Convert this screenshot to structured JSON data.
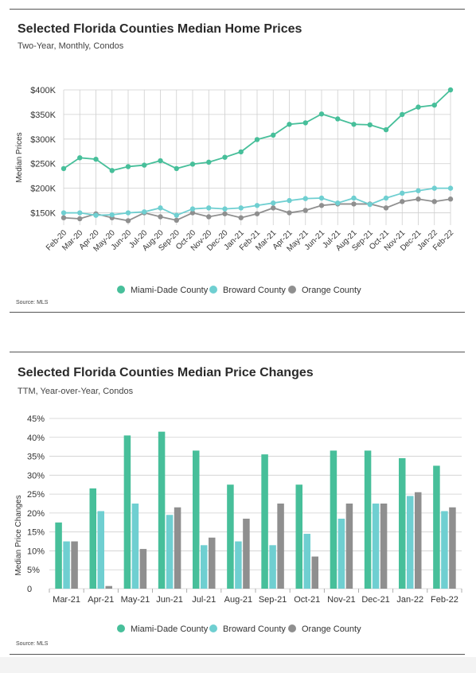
{
  "colors": {
    "miami": "#47bf9a",
    "broward": "#6fcfd1",
    "orange": "#8f8f8f",
    "grid": "#cfcfcf"
  },
  "chart1": {
    "title": "Selected Florida Counties Median Home Prices",
    "subtitle": "Two-Year, Monthly, Condos",
    "source": "Source: MLS"
  },
  "chart2": {
    "title": "Selected Florida Counties Median Price Changes",
    "subtitle": "TTM, Year-over-Year, Condos",
    "source": "Source: MLS"
  },
  "chart_data": [
    {
      "type": "line",
      "title": "Selected Florida Counties Median Home Prices",
      "subtitle": "Two-Year, Monthly, Condos",
      "xlabel": "",
      "ylabel": "Median Prices",
      "ylim": [
        125000,
        400000
      ],
      "yticks": [
        150000,
        200000,
        250000,
        300000,
        350000,
        400000
      ],
      "ytick_labels": [
        "$150K",
        "$200K",
        "$250K",
        "$300K",
        "$350K",
        "$400K"
      ],
      "grid": true,
      "legend_position": "bottom",
      "categories": [
        "Feb-20",
        "Mar-20",
        "Apr-20",
        "May-20",
        "Jun-20",
        "Jul-20",
        "Aug-20",
        "Sep-20",
        "Oct-20",
        "Nov-20",
        "Dec-20",
        "Jan-21",
        "Feb-21",
        "Mar-21",
        "Apr-21",
        "May-21",
        "Jun-21",
        "Jul-21",
        "Aug-21",
        "Sep-21",
        "Oct-21",
        "Nov-21",
        "Dec-21",
        "Jan-22",
        "Feb-22"
      ],
      "series": [
        {
          "name": "Miami-Dade County",
          "color": "#47bf9a",
          "values": [
            240000,
            262000,
            259000,
            236000,
            244000,
            247000,
            256000,
            240000,
            249000,
            253000,
            263000,
            274000,
            299000,
            308000,
            330000,
            333000,
            351000,
            341000,
            330000,
            329000,
            319000,
            350000,
            365000,
            369000,
            400000
          ]
        },
        {
          "name": "Broward County",
          "color": "#6fcfd1",
          "values": [
            150000,
            150000,
            145000,
            146000,
            150000,
            152000,
            160000,
            145000,
            158000,
            160000,
            158000,
            160000,
            165000,
            170000,
            175000,
            179000,
            180000,
            170000,
            180000,
            167000,
            180000,
            190000,
            195000,
            200000,
            200000
          ]
        },
        {
          "name": "Orange County",
          "color": "#8f8f8f",
          "values": [
            140000,
            138000,
            148000,
            140000,
            134000,
            150000,
            142000,
            135000,
            150000,
            142000,
            148000,
            140000,
            148000,
            160000,
            150000,
            155000,
            165000,
            168000,
            168000,
            168000,
            160000,
            173000,
            178000,
            173000,
            178000
          ]
        }
      ]
    },
    {
      "type": "bar",
      "title": "Selected Florida Counties Median Price Changes",
      "subtitle": "TTM, Year-over-Year, Condos",
      "xlabel": "",
      "ylabel": "Median Price Changes",
      "ylim": [
        0,
        45
      ],
      "yticks": [
        0,
        5,
        10,
        15,
        20,
        25,
        30,
        35,
        40,
        45
      ],
      "ytick_labels": [
        "0",
        "5%",
        "10%",
        "15%",
        "20%",
        "25%",
        "30%",
        "35%",
        "40%",
        "45%"
      ],
      "grid": true,
      "legend_position": "bottom",
      "categories": [
        "Mar-21",
        "Apr-21",
        "May-21",
        "Jun-21",
        "Jul-21",
        "Aug-21",
        "Sep-21",
        "Oct-21",
        "Nov-21",
        "Dec-21",
        "Jan-22",
        "Feb-22"
      ],
      "series": [
        {
          "name": "Miami-Dade County",
          "color": "#47bf9a",
          "values": [
            17.5,
            26.5,
            40.5,
            41.5,
            36.5,
            27.5,
            35.5,
            27.5,
            36.5,
            36.5,
            34.5,
            32.5
          ]
        },
        {
          "name": "Broward County",
          "color": "#6fcfd1",
          "values": [
            12.5,
            20.5,
            22.5,
            19.5,
            11.5,
            12.5,
            11.5,
            14.5,
            18.5,
            22.5,
            24.5,
            20.5
          ]
        },
        {
          "name": "Orange County",
          "color": "#8f8f8f",
          "values": [
            12.5,
            0.7,
            10.5,
            21.5,
            13.5,
            18.5,
            22.5,
            8.5,
            22.5,
            22.5,
            25.5,
            21.5
          ]
        }
      ]
    }
  ]
}
